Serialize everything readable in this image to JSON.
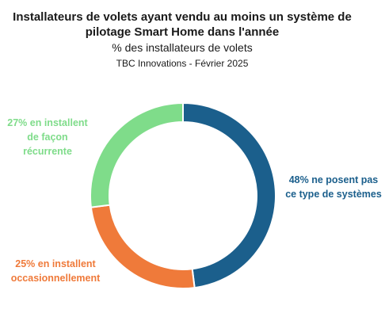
{
  "chart_data": {
    "type": "pie",
    "donut": true,
    "title": "Installateurs de volets ayant vendu au moins un système de pilotage Smart Home dans l'année",
    "title_lines": [
      "Installateurs de volets ayant vendu au moins un système de",
      "pilotage Smart Home dans l'année"
    ],
    "subtitle": "% des installateurs de volets",
    "source": "TBC Innovations - Février 2025",
    "slices": [
      {
        "value": 48,
        "color": "#1b5f8c",
        "label_lines": [
          "48% ne posent pas",
          "ce type de systèmes"
        ]
      },
      {
        "value": 25,
        "color": "#ef7a3a",
        "label_lines": [
          "25% en installent",
          "occasionnellement"
        ]
      },
      {
        "value": 27,
        "color": "#7fdc8a",
        "label_lines": [
          "27% en installent",
          "de façon",
          "récurrente"
        ]
      }
    ],
    "legend": "none"
  }
}
